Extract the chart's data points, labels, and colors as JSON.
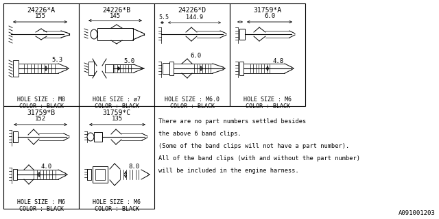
{
  "background_color": "#ffffff",
  "parts": [
    {
      "id": "24226*A",
      "col": 0,
      "row": 0,
      "dim_top": "155",
      "dim_side": "5.3",
      "hole_size": "M8",
      "color": "BLACK"
    },
    {
      "id": "24226*B",
      "col": 1,
      "row": 0,
      "dim_top": "145",
      "dim_side": "5.0",
      "hole_size": "ø7",
      "color": "BLACK"
    },
    {
      "id": "24226*D",
      "col": 2,
      "row": 0,
      "dim_top": "144.9",
      "dim_top2": "5.5",
      "dim_side": "6.0",
      "hole_size": "M6.0",
      "color": "BLACK"
    },
    {
      "id": "31759*A",
      "col": 3,
      "row": 0,
      "dim_top": "6.0",
      "dim_side": "4.8",
      "hole_size": "M6",
      "color": "BLACK"
    },
    {
      "id": "31759*B",
      "col": 0,
      "row": 1,
      "dim_top": "152",
      "dim_side": "4.0",
      "hole_size": "M6",
      "color": "BLACK"
    },
    {
      "id": "31759*C",
      "col": 1,
      "row": 1,
      "dim_top": "135",
      "dim_side": "8.0",
      "hole_size": "M6",
      "color": "BLACK"
    }
  ],
  "note_lines": [
    "There are no part numbers settled besides",
    "the above 6 band clips.",
    "(Some of the band clips will not have a part number).",
    "All of the band clips (with and without the part number)",
    "will be included in the engine harness."
  ],
  "diagram_id": "A091001203"
}
